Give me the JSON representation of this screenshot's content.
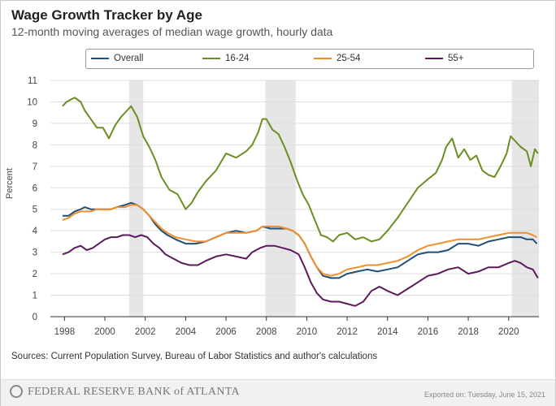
{
  "header": {
    "title": "Wage Growth Tracker by Age",
    "subtitle": "12-month moving averages of median wage growth, hourly data"
  },
  "colors": {
    "overall": "#1f4e79",
    "age_16_24": "#6b8e23",
    "age_25_54": "#f28e2b",
    "age_55_plus": "#5b1a5c",
    "recession": "#e6e6e6",
    "grid": "#dddddd"
  },
  "footer": {
    "sources": "Sources: Current Population Survey, Bureau of Labor Statistics and author's calculations",
    "bank_name": "FEDERAL RESERVE BANK of ATLANTA",
    "exported": "Exported on: Tuesday, June 15, 2021"
  },
  "chart_data": {
    "type": "line",
    "title": "Wage Growth Tracker by Age",
    "subtitle": "12-month moving averages of median wage growth, hourly data",
    "xlabel": "",
    "ylabel": "Percent",
    "xlim": [
      1997.3,
      2021.5
    ],
    "ylim": [
      0,
      11
    ],
    "y_ticks": [
      0,
      1,
      2,
      3,
      4,
      5,
      6,
      7,
      8,
      9,
      10,
      11
    ],
    "x_ticks": [
      "1998",
      "2000",
      "2002",
      "2004",
      "2006",
      "2008",
      "2010",
      "2012",
      "2014",
      "2016",
      "2018",
      "2020"
    ],
    "grid": true,
    "legend_position": "top",
    "recession_shading": [
      [
        2001.2,
        2001.9
      ],
      [
        2007.95,
        2009.45
      ],
      [
        2020.15,
        2021.5
      ]
    ],
    "series": [
      {
        "name": "Overall",
        "x": [
          1997.9,
          1998.2,
          1998.5,
          1998.8,
          1999.0,
          1999.3,
          1999.6,
          2000.0,
          2000.3,
          2000.6,
          2001.0,
          2001.3,
          2001.6,
          2001.9,
          2002.2,
          2002.5,
          2002.8,
          2003.1,
          2003.5,
          2004.0,
          2004.5,
          2005.0,
          2005.5,
          2006.0,
          2006.5,
          2007.0,
          2007.5,
          2007.8,
          2008.2,
          2008.6,
          2009.0,
          2009.3,
          2009.6,
          2009.9,
          2010.2,
          2010.5,
          2010.8,
          2011.2,
          2011.6,
          2012.0,
          2012.5,
          2013.0,
          2013.5,
          2014.0,
          2014.5,
          2015.0,
          2015.5,
          2016.0,
          2016.5,
          2017.0,
          2017.5,
          2018.0,
          2018.5,
          2019.0,
          2019.5,
          2020.0,
          2020.3,
          2020.6,
          2020.9,
          2021.2,
          2021.4
        ],
        "values": [
          4.7,
          4.7,
          4.9,
          5.0,
          5.1,
          5.0,
          5.0,
          5.0,
          5.0,
          5.1,
          5.2,
          5.3,
          5.2,
          5.0,
          4.7,
          4.3,
          4.0,
          3.8,
          3.6,
          3.4,
          3.4,
          3.5,
          3.7,
          3.9,
          4.0,
          3.9,
          4.0,
          4.2,
          4.1,
          4.1,
          4.1,
          4.0,
          3.8,
          3.4,
          2.8,
          2.3,
          1.9,
          1.8,
          1.8,
          2.0,
          2.1,
          2.2,
          2.1,
          2.2,
          2.3,
          2.6,
          2.9,
          3.0,
          3.0,
          3.1,
          3.4,
          3.4,
          3.3,
          3.5,
          3.6,
          3.7,
          3.7,
          3.7,
          3.6,
          3.6,
          3.4
        ]
      },
      {
        "name": "16-24",
        "x": [
          1997.9,
          1998.1,
          1998.3,
          1998.5,
          1998.8,
          1999.0,
          1999.3,
          1999.6,
          1999.9,
          2000.2,
          2000.5,
          2000.8,
          2001.1,
          2001.3,
          2001.6,
          2001.9,
          2002.2,
          2002.5,
          2002.8,
          2003.2,
          2003.6,
          2004.0,
          2004.3,
          2004.6,
          2005.0,
          2005.5,
          2006.0,
          2006.5,
          2007.0,
          2007.3,
          2007.6,
          2007.8,
          2008.0,
          2008.3,
          2008.6,
          2008.9,
          2009.2,
          2009.5,
          2009.8,
          2010.1,
          2010.4,
          2010.7,
          2011.0,
          2011.3,
          2011.6,
          2012.0,
          2012.4,
          2012.8,
          2013.2,
          2013.6,
          2014.0,
          2014.5,
          2015.0,
          2015.5,
          2016.0,
          2016.4,
          2016.7,
          2016.9,
          2017.2,
          2017.5,
          2017.8,
          2018.1,
          2018.4,
          2018.7,
          2019.0,
          2019.3,
          2019.6,
          2019.9,
          2020.1,
          2020.3,
          2020.6,
          2020.9,
          2021.1,
          2021.3,
          2021.45
        ],
        "values": [
          9.8,
          10.0,
          10.1,
          10.2,
          10.0,
          9.6,
          9.2,
          8.8,
          8.8,
          8.3,
          8.9,
          9.3,
          9.6,
          9.8,
          9.3,
          8.4,
          7.9,
          7.3,
          6.5,
          5.9,
          5.7,
          5.0,
          5.3,
          5.8,
          6.3,
          6.8,
          7.6,
          7.4,
          7.7,
          8.0,
          8.6,
          9.2,
          9.2,
          8.7,
          8.5,
          7.9,
          7.2,
          6.4,
          5.7,
          5.2,
          4.5,
          3.8,
          3.7,
          3.5,
          3.8,
          3.9,
          3.6,
          3.7,
          3.5,
          3.6,
          4.0,
          4.6,
          5.3,
          6.0,
          6.4,
          6.7,
          7.3,
          7.9,
          8.3,
          7.4,
          7.8,
          7.3,
          7.5,
          6.8,
          6.6,
          6.5,
          7.0,
          7.6,
          8.4,
          8.2,
          7.9,
          7.7,
          7.0,
          7.8,
          7.6
        ]
      },
      {
        "name": "25-54",
        "x": [
          1997.9,
          1998.2,
          1998.5,
          1998.8,
          1999.0,
          1999.3,
          1999.6,
          2000.0,
          2000.3,
          2000.6,
          2001.0,
          2001.3,
          2001.6,
          2001.9,
          2002.2,
          2002.5,
          2002.8,
          2003.1,
          2003.5,
          2004.0,
          2004.5,
          2005.0,
          2005.5,
          2006.0,
          2006.5,
          2007.0,
          2007.5,
          2007.8,
          2008.2,
          2008.6,
          2009.0,
          2009.3,
          2009.6,
          2009.9,
          2010.2,
          2010.5,
          2010.8,
          2011.2,
          2011.6,
          2012.0,
          2012.5,
          2013.0,
          2013.5,
          2014.0,
          2014.5,
          2015.0,
          2015.5,
          2016.0,
          2016.5,
          2017.0,
          2017.5,
          2018.0,
          2018.5,
          2019.0,
          2019.5,
          2020.0,
          2020.3,
          2020.6,
          2020.9,
          2021.2,
          2021.4
        ],
        "values": [
          4.5,
          4.6,
          4.8,
          4.9,
          4.9,
          4.9,
          5.0,
          5.0,
          5.0,
          5.1,
          5.1,
          5.2,
          5.2,
          5.0,
          4.7,
          4.4,
          4.1,
          3.9,
          3.7,
          3.6,
          3.5,
          3.5,
          3.7,
          3.9,
          3.9,
          3.9,
          4.0,
          4.2,
          4.2,
          4.2,
          4.1,
          4.0,
          3.8,
          3.4,
          2.8,
          2.3,
          2.0,
          1.9,
          2.0,
          2.2,
          2.3,
          2.4,
          2.4,
          2.5,
          2.6,
          2.8,
          3.1,
          3.3,
          3.4,
          3.5,
          3.6,
          3.6,
          3.6,
          3.7,
          3.8,
          3.9,
          3.9,
          3.9,
          3.9,
          3.8,
          3.7
        ]
      },
      {
        "name": "55+",
        "x": [
          1997.9,
          1998.2,
          1998.5,
          1998.8,
          1999.1,
          1999.4,
          1999.7,
          2000.0,
          2000.3,
          2000.6,
          2000.9,
          2001.2,
          2001.5,
          2001.8,
          2002.1,
          2002.4,
          2002.7,
          2003.0,
          2003.4,
          2003.8,
          2004.2,
          2004.6,
          2005.0,
          2005.5,
          2006.0,
          2006.5,
          2007.0,
          2007.3,
          2007.7,
          2008.0,
          2008.4,
          2008.8,
          2009.2,
          2009.6,
          2009.9,
          2010.2,
          2010.5,
          2010.8,
          2011.2,
          2011.6,
          2012.0,
          2012.4,
          2012.8,
          2013.2,
          2013.6,
          2014.0,
          2014.5,
          2015.0,
          2015.5,
          2016.0,
          2016.5,
          2017.0,
          2017.5,
          2018.0,
          2018.5,
          2019.0,
          2019.5,
          2020.0,
          2020.3,
          2020.6,
          2020.9,
          2021.2,
          2021.45
        ],
        "values": [
          2.9,
          3.0,
          3.2,
          3.3,
          3.1,
          3.2,
          3.4,
          3.6,
          3.7,
          3.7,
          3.8,
          3.8,
          3.7,
          3.8,
          3.7,
          3.4,
          3.2,
          2.9,
          2.7,
          2.5,
          2.4,
          2.4,
          2.6,
          2.8,
          2.9,
          2.8,
          2.7,
          3.0,
          3.2,
          3.3,
          3.3,
          3.2,
          3.1,
          2.9,
          2.3,
          1.6,
          1.1,
          0.8,
          0.7,
          0.7,
          0.6,
          0.5,
          0.7,
          1.2,
          1.4,
          1.2,
          1.0,
          1.3,
          1.6,
          1.9,
          2.0,
          2.2,
          2.3,
          2.0,
          2.1,
          2.3,
          2.3,
          2.5,
          2.6,
          2.5,
          2.3,
          2.2,
          1.8
        ]
      }
    ]
  }
}
